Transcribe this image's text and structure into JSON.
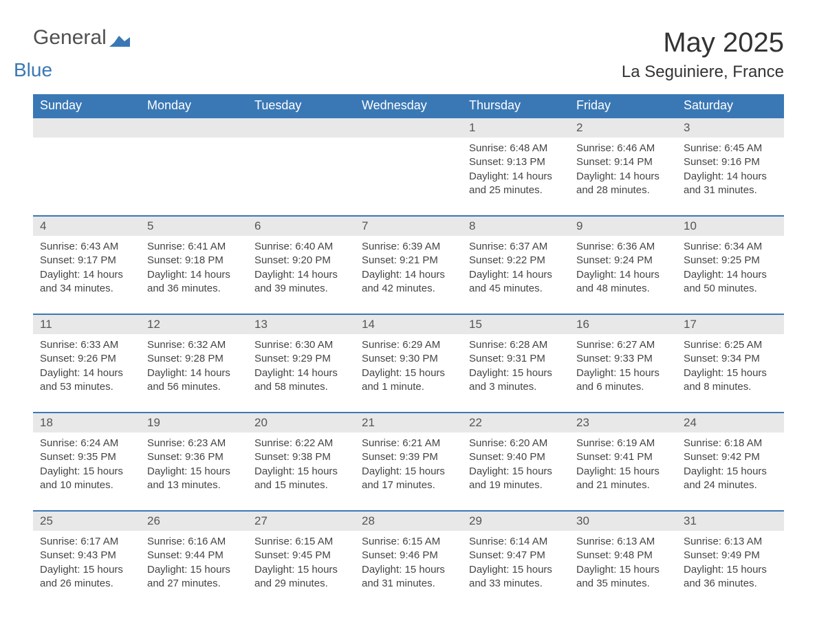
{
  "brand": {
    "part1": "General",
    "part2": "Blue"
  },
  "title": "May 2025",
  "location": "La Seguiniere, France",
  "colors": {
    "header_bg": "#3a78b5",
    "header_text": "#ffffff",
    "row_divider": "#3a78b5",
    "daynum_bg": "#e8e8e8",
    "body_text": "#444444",
    "page_bg": "#ffffff"
  },
  "typography": {
    "title_fontsize": 40,
    "location_fontsize": 24,
    "dayheader_fontsize": 18,
    "daynum_fontsize": 17,
    "cell_fontsize": 15
  },
  "day_headers": [
    "Sunday",
    "Monday",
    "Tuesday",
    "Wednesday",
    "Thursday",
    "Friday",
    "Saturday"
  ],
  "weeks": [
    [
      null,
      null,
      null,
      null,
      {
        "n": "1",
        "sunrise": "Sunrise: 6:48 AM",
        "sunset": "Sunset: 9:13 PM",
        "day1": "Daylight: 14 hours",
        "day2": "and 25 minutes."
      },
      {
        "n": "2",
        "sunrise": "Sunrise: 6:46 AM",
        "sunset": "Sunset: 9:14 PM",
        "day1": "Daylight: 14 hours",
        "day2": "and 28 minutes."
      },
      {
        "n": "3",
        "sunrise": "Sunrise: 6:45 AM",
        "sunset": "Sunset: 9:16 PM",
        "day1": "Daylight: 14 hours",
        "day2": "and 31 minutes."
      }
    ],
    [
      {
        "n": "4",
        "sunrise": "Sunrise: 6:43 AM",
        "sunset": "Sunset: 9:17 PM",
        "day1": "Daylight: 14 hours",
        "day2": "and 34 minutes."
      },
      {
        "n": "5",
        "sunrise": "Sunrise: 6:41 AM",
        "sunset": "Sunset: 9:18 PM",
        "day1": "Daylight: 14 hours",
        "day2": "and 36 minutes."
      },
      {
        "n": "6",
        "sunrise": "Sunrise: 6:40 AM",
        "sunset": "Sunset: 9:20 PM",
        "day1": "Daylight: 14 hours",
        "day2": "and 39 minutes."
      },
      {
        "n": "7",
        "sunrise": "Sunrise: 6:39 AM",
        "sunset": "Sunset: 9:21 PM",
        "day1": "Daylight: 14 hours",
        "day2": "and 42 minutes."
      },
      {
        "n": "8",
        "sunrise": "Sunrise: 6:37 AM",
        "sunset": "Sunset: 9:22 PM",
        "day1": "Daylight: 14 hours",
        "day2": "and 45 minutes."
      },
      {
        "n": "9",
        "sunrise": "Sunrise: 6:36 AM",
        "sunset": "Sunset: 9:24 PM",
        "day1": "Daylight: 14 hours",
        "day2": "and 48 minutes."
      },
      {
        "n": "10",
        "sunrise": "Sunrise: 6:34 AM",
        "sunset": "Sunset: 9:25 PM",
        "day1": "Daylight: 14 hours",
        "day2": "and 50 minutes."
      }
    ],
    [
      {
        "n": "11",
        "sunrise": "Sunrise: 6:33 AM",
        "sunset": "Sunset: 9:26 PM",
        "day1": "Daylight: 14 hours",
        "day2": "and 53 minutes."
      },
      {
        "n": "12",
        "sunrise": "Sunrise: 6:32 AM",
        "sunset": "Sunset: 9:28 PM",
        "day1": "Daylight: 14 hours",
        "day2": "and 56 minutes."
      },
      {
        "n": "13",
        "sunrise": "Sunrise: 6:30 AM",
        "sunset": "Sunset: 9:29 PM",
        "day1": "Daylight: 14 hours",
        "day2": "and 58 minutes."
      },
      {
        "n": "14",
        "sunrise": "Sunrise: 6:29 AM",
        "sunset": "Sunset: 9:30 PM",
        "day1": "Daylight: 15 hours",
        "day2": "and 1 minute."
      },
      {
        "n": "15",
        "sunrise": "Sunrise: 6:28 AM",
        "sunset": "Sunset: 9:31 PM",
        "day1": "Daylight: 15 hours",
        "day2": "and 3 minutes."
      },
      {
        "n": "16",
        "sunrise": "Sunrise: 6:27 AM",
        "sunset": "Sunset: 9:33 PM",
        "day1": "Daylight: 15 hours",
        "day2": "and 6 minutes."
      },
      {
        "n": "17",
        "sunrise": "Sunrise: 6:25 AM",
        "sunset": "Sunset: 9:34 PM",
        "day1": "Daylight: 15 hours",
        "day2": "and 8 minutes."
      }
    ],
    [
      {
        "n": "18",
        "sunrise": "Sunrise: 6:24 AM",
        "sunset": "Sunset: 9:35 PM",
        "day1": "Daylight: 15 hours",
        "day2": "and 10 minutes."
      },
      {
        "n": "19",
        "sunrise": "Sunrise: 6:23 AM",
        "sunset": "Sunset: 9:36 PM",
        "day1": "Daylight: 15 hours",
        "day2": "and 13 minutes."
      },
      {
        "n": "20",
        "sunrise": "Sunrise: 6:22 AM",
        "sunset": "Sunset: 9:38 PM",
        "day1": "Daylight: 15 hours",
        "day2": "and 15 minutes."
      },
      {
        "n": "21",
        "sunrise": "Sunrise: 6:21 AM",
        "sunset": "Sunset: 9:39 PM",
        "day1": "Daylight: 15 hours",
        "day2": "and 17 minutes."
      },
      {
        "n": "22",
        "sunrise": "Sunrise: 6:20 AM",
        "sunset": "Sunset: 9:40 PM",
        "day1": "Daylight: 15 hours",
        "day2": "and 19 minutes."
      },
      {
        "n": "23",
        "sunrise": "Sunrise: 6:19 AM",
        "sunset": "Sunset: 9:41 PM",
        "day1": "Daylight: 15 hours",
        "day2": "and 21 minutes."
      },
      {
        "n": "24",
        "sunrise": "Sunrise: 6:18 AM",
        "sunset": "Sunset: 9:42 PM",
        "day1": "Daylight: 15 hours",
        "day2": "and 24 minutes."
      }
    ],
    [
      {
        "n": "25",
        "sunrise": "Sunrise: 6:17 AM",
        "sunset": "Sunset: 9:43 PM",
        "day1": "Daylight: 15 hours",
        "day2": "and 26 minutes."
      },
      {
        "n": "26",
        "sunrise": "Sunrise: 6:16 AM",
        "sunset": "Sunset: 9:44 PM",
        "day1": "Daylight: 15 hours",
        "day2": "and 27 minutes."
      },
      {
        "n": "27",
        "sunrise": "Sunrise: 6:15 AM",
        "sunset": "Sunset: 9:45 PM",
        "day1": "Daylight: 15 hours",
        "day2": "and 29 minutes."
      },
      {
        "n": "28",
        "sunrise": "Sunrise: 6:15 AM",
        "sunset": "Sunset: 9:46 PM",
        "day1": "Daylight: 15 hours",
        "day2": "and 31 minutes."
      },
      {
        "n": "29",
        "sunrise": "Sunrise: 6:14 AM",
        "sunset": "Sunset: 9:47 PM",
        "day1": "Daylight: 15 hours",
        "day2": "and 33 minutes."
      },
      {
        "n": "30",
        "sunrise": "Sunrise: 6:13 AM",
        "sunset": "Sunset: 9:48 PM",
        "day1": "Daylight: 15 hours",
        "day2": "and 35 minutes."
      },
      {
        "n": "31",
        "sunrise": "Sunrise: 6:13 AM",
        "sunset": "Sunset: 9:49 PM",
        "day1": "Daylight: 15 hours",
        "day2": "and 36 minutes."
      }
    ]
  ]
}
